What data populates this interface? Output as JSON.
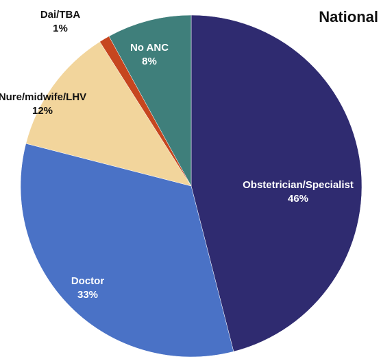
{
  "chart_data": {
    "type": "pie",
    "title": "National",
    "categories": [
      "Obstetrician/Specialist",
      "Doctor",
      "Nure/midwife/LHV",
      "Dai/TBA",
      "No ANC"
    ],
    "values": [
      46,
      33,
      12,
      1,
      8
    ],
    "value_labels": [
      "46%",
      "33%",
      "12%",
      "1%",
      "8%"
    ],
    "colors": [
      "#2f2b70",
      "#4a72c6",
      "#f2d59c",
      "#c6461f",
      "#3f7f7b"
    ]
  }
}
